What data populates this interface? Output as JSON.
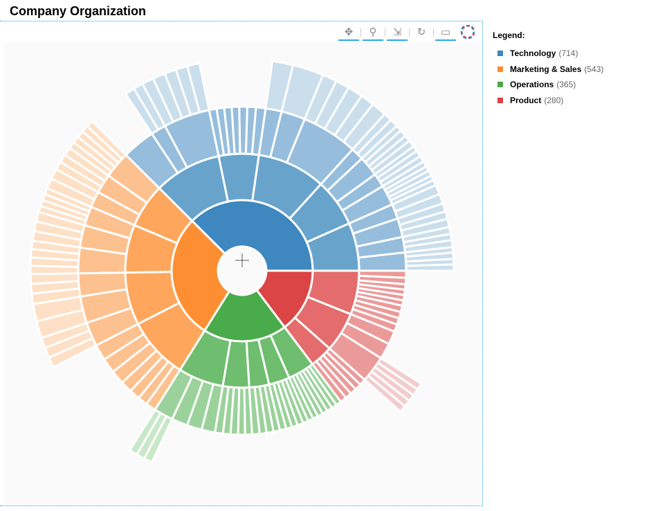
{
  "title": "Company Organization",
  "toolbar": {
    "tools": [
      "pan-icon",
      "wheel-zoom-icon",
      "tap-select-icon",
      "reset-icon",
      "hover-icon",
      "bokeh-logo-icon"
    ]
  },
  "legend": {
    "title": "Legend:",
    "items": [
      {
        "label": "Technology",
        "count": "(714)",
        "color": "#3d86be"
      },
      {
        "label": "Marketing & Sales",
        "count": "(543)",
        "color": "#fd8d2f"
      },
      {
        "label": "Operations",
        "count": "(365)",
        "color": "#48aa48"
      },
      {
        "label": "Product",
        "count": "(280)",
        "color": "#db4343"
      }
    ]
  },
  "chart_data": {
    "type": "sunburst",
    "title": "Company Organization",
    "level_colors": {
      "Technology": [
        "#3e87bf",
        "#68a3cc",
        "#96bddc",
        "#cadeec"
      ],
      "Marketing & Sales": [
        "#fd8f32",
        "#fea75c",
        "#fdc18f",
        "#fde0c6"
      ],
      "Operations": [
        "#4aab4a",
        "#6fbd6f",
        "#9bd29b",
        "#c9e7c9"
      ],
      "Product": [
        "#dc4545",
        "#e46c6c",
        "#eb9a9a",
        "#f3cdcd"
      ]
    },
    "tree": [
      {
        "name": "Technology",
        "c": [
          {
            "c": [
              {
                "c": [
                  {
                    "v": 9
                  },
                  {
                    "v": 8
                  },
                  {
                    "v": 9
                  },
                  {
                    "v": 8
                  }
                ]
              },
              {
                "c": [
                  {
                    "v": 10
                  },
                  {
                    "v": 9
                  },
                  {
                    "v": 10
                  }
                ]
              },
              {
                "c": [
                  {
                    "v": 12
                  },
                  {
                    "v": 11
                  },
                  {
                    "v": 12
                  }
                ]
              },
              {
                "c": [
                  {
                    "v": 14
                  },
                  {
                    "v": 14
                  }
                ]
              }
            ]
          },
          {
            "c": [
              {
                "c": [
                  {
                    "v": 8
                  },
                  {
                    "v": 7
                  },
                  {
                    "v": 8
                  },
                  {
                    "v": 7
                  },
                  {
                    "v": 8
                  }
                ]
              },
              {
                "c": [
                  {
                    "v": 9
                  },
                  {
                    "v": 9
                  },
                  {
                    "v": 8
                  }
                ]
              },
              {
                "c": [
                  {
                    "v": 10
                  },
                  {
                    "v": 9
                  },
                  {
                    "v": 10
                  },
                  {
                    "v": 9
                  }
                ]
              },
              {
                "c": [
                  {
                    "v": 12
                  },
                  {
                    "v": 12
                  }
                ]
              }
            ]
          },
          {
            "c": [
              {
                "c": [
                  {
                    "v": 22
                  },
                  {
                    "v": 20
                  },
                  {
                    "v": 22
                  },
                  {
                    "v": 20
                  },
                  {
                    "v": 21
                  }
                ]
              },
              {
                "c": [
                  {
                    "v": 45
                  }
                ]
              },
              {
                "c": [
                  {
                    "v": 30
                  }
                ]
              }
            ]
          },
          {
            "c": [
              {
                "v": 18
              },
              {
                "v": 16
              },
              {
                "v": 15
              },
              {
                "v": 14
              },
              {
                "v": 14
              },
              {
                "v": 14
              },
              {
                "v": 14
              }
            ]
          },
          {
            "c": [
              {
                "c": [
                  {
                    "v": 18
                  },
                  {
                    "v": 17
                  },
                  {
                    "v": 17
                  },
                  {
                    "v": 18
                  },
                  {
                    "v": 17
                  }
                ]
              },
              {
                "c": [
                  {
                    "v": 14
                  },
                  {
                    "v": 14
                  }
                ]
              },
              {
                "v": 62
              }
            ]
          }
        ]
      },
      {
        "name": "Marketing & Sales",
        "c": [
          {
            "c": [
              {
                "c": [
                  {
                    "v": 10
                  },
                  {
                    "v": 10
                  },
                  {
                    "v": 10
                  },
                  {
                    "v": 10
                  },
                  {
                    "v": 10
                  }
                ]
              },
              {
                "c": [
                  {
                    "v": 12
                  },
                  {
                    "v": 12
                  },
                  {
                    "v": 12
                  }
                ]
              },
              {
                "c": [
                  {
                    "v": 15
                  },
                  {
                    "v": 15
                  }
                ]
              }
            ]
          },
          {
            "c": [
              {
                "c": [
                  {
                    "v": 9
                  },
                  {
                    "v": 9
                  },
                  {
                    "v": 9
                  },
                  {
                    "v": 9
                  }
                ]
              },
              {
                "c": [
                  {
                    "v": 14
                  },
                  {
                    "v": 14
                  },
                  {
                    "v": 14
                  }
                ]
              },
              {
                "c": [
                  {
                    "v": 12
                  },
                  {
                    "v": 12
                  },
                  {
                    "v": 12
                  },
                  {
                    "v": 12
                  }
                ]
              }
            ]
          },
          {
            "c": [
              {
                "c": [
                  {
                    "v": 14
                  },
                  {
                    "v": 14
                  },
                  {
                    "v": 15
                  }
                ]
              },
              {
                "c": [
                  {
                    "v": 25
                  },
                  {
                    "v": 25
                  }
                ]
              },
              {
                "c": [
                  {
                    "v": 15
                  },
                  {
                    "v": 15
                  },
                  {
                    "v": 15
                  }
                ]
              }
            ]
          },
          {
            "c": [
              {
                "v": 30
              },
              {
                "v": 28
              },
              {
                "v": 26
              },
              {
                "v": 22
              },
              {
                "v": 20
              },
              {
                "v": 18
              },
              {
                "v": 19
              }
            ]
          }
        ]
      },
      {
        "name": "Operations",
        "c": [
          {
            "c": [
              {
                "c": [
                  {
                    "v": 12
                  },
                  {
                    "v": 12
                  },
                  {
                    "v": 12
                  }
                ]
              },
              {
                "v": 30
              },
              {
                "v": 28
              },
              {
                "v": 25
              }
            ]
          },
          {
            "c": [
              {
                "v": 15
              },
              {
                "v": 14
              },
              {
                "v": 14
              },
              {
                "v": 13
              },
              {
                "v": 13
              }
            ]
          },
          {
            "c": [
              {
                "v": 14
              },
              {
                "v": 13
              },
              {
                "v": 13
              },
              {
                "v": 12
              }
            ]
          },
          {
            "c": [
              {
                "v": 12
              },
              {
                "v": 11
              },
              {
                "v": 11
              },
              {
                "v": 11
              },
              {
                "v": 10
              }
            ]
          },
          {
            "c": [
              {
                "v": 10
              },
              {
                "v": 10
              },
              {
                "v": 10
              },
              {
                "v": 10
              },
              {
                "v": 10
              },
              {
                "v": 10
              },
              {
                "v": 10
              }
            ]
          }
        ]
      },
      {
        "name": "Product",
        "c": [
          {
            "c": [
              {
                "v": 12
              },
              {
                "v": 12
              },
              {
                "v": 12
              },
              {
                "v": 12
              },
              {
                "v": 12
              }
            ]
          },
          {
            "c": [
              {
                "c": [
                  {
                    "v": 10
                  },
                  {
                    "v": 10
                  },
                  {
                    "v": 10
                  },
                  {
                    "v": 10
                  },
                  {
                    "v": 10
                  }
                ]
              },
              {
                "v": 30
              },
              {
                "v": 25
              }
            ]
          },
          {
            "c": [
              {
                "v": 14
              },
              {
                "v": 12
              },
              {
                "v": 12
              },
              {
                "v": 12
              },
              {
                "v": 10
              },
              {
                "v": 10
              },
              {
                "v": 10
              },
              {
                "v": 10
              },
              {
                "v": 12
              },
              {
                "v": 13
              }
            ]
          }
        ]
      }
    ]
  }
}
